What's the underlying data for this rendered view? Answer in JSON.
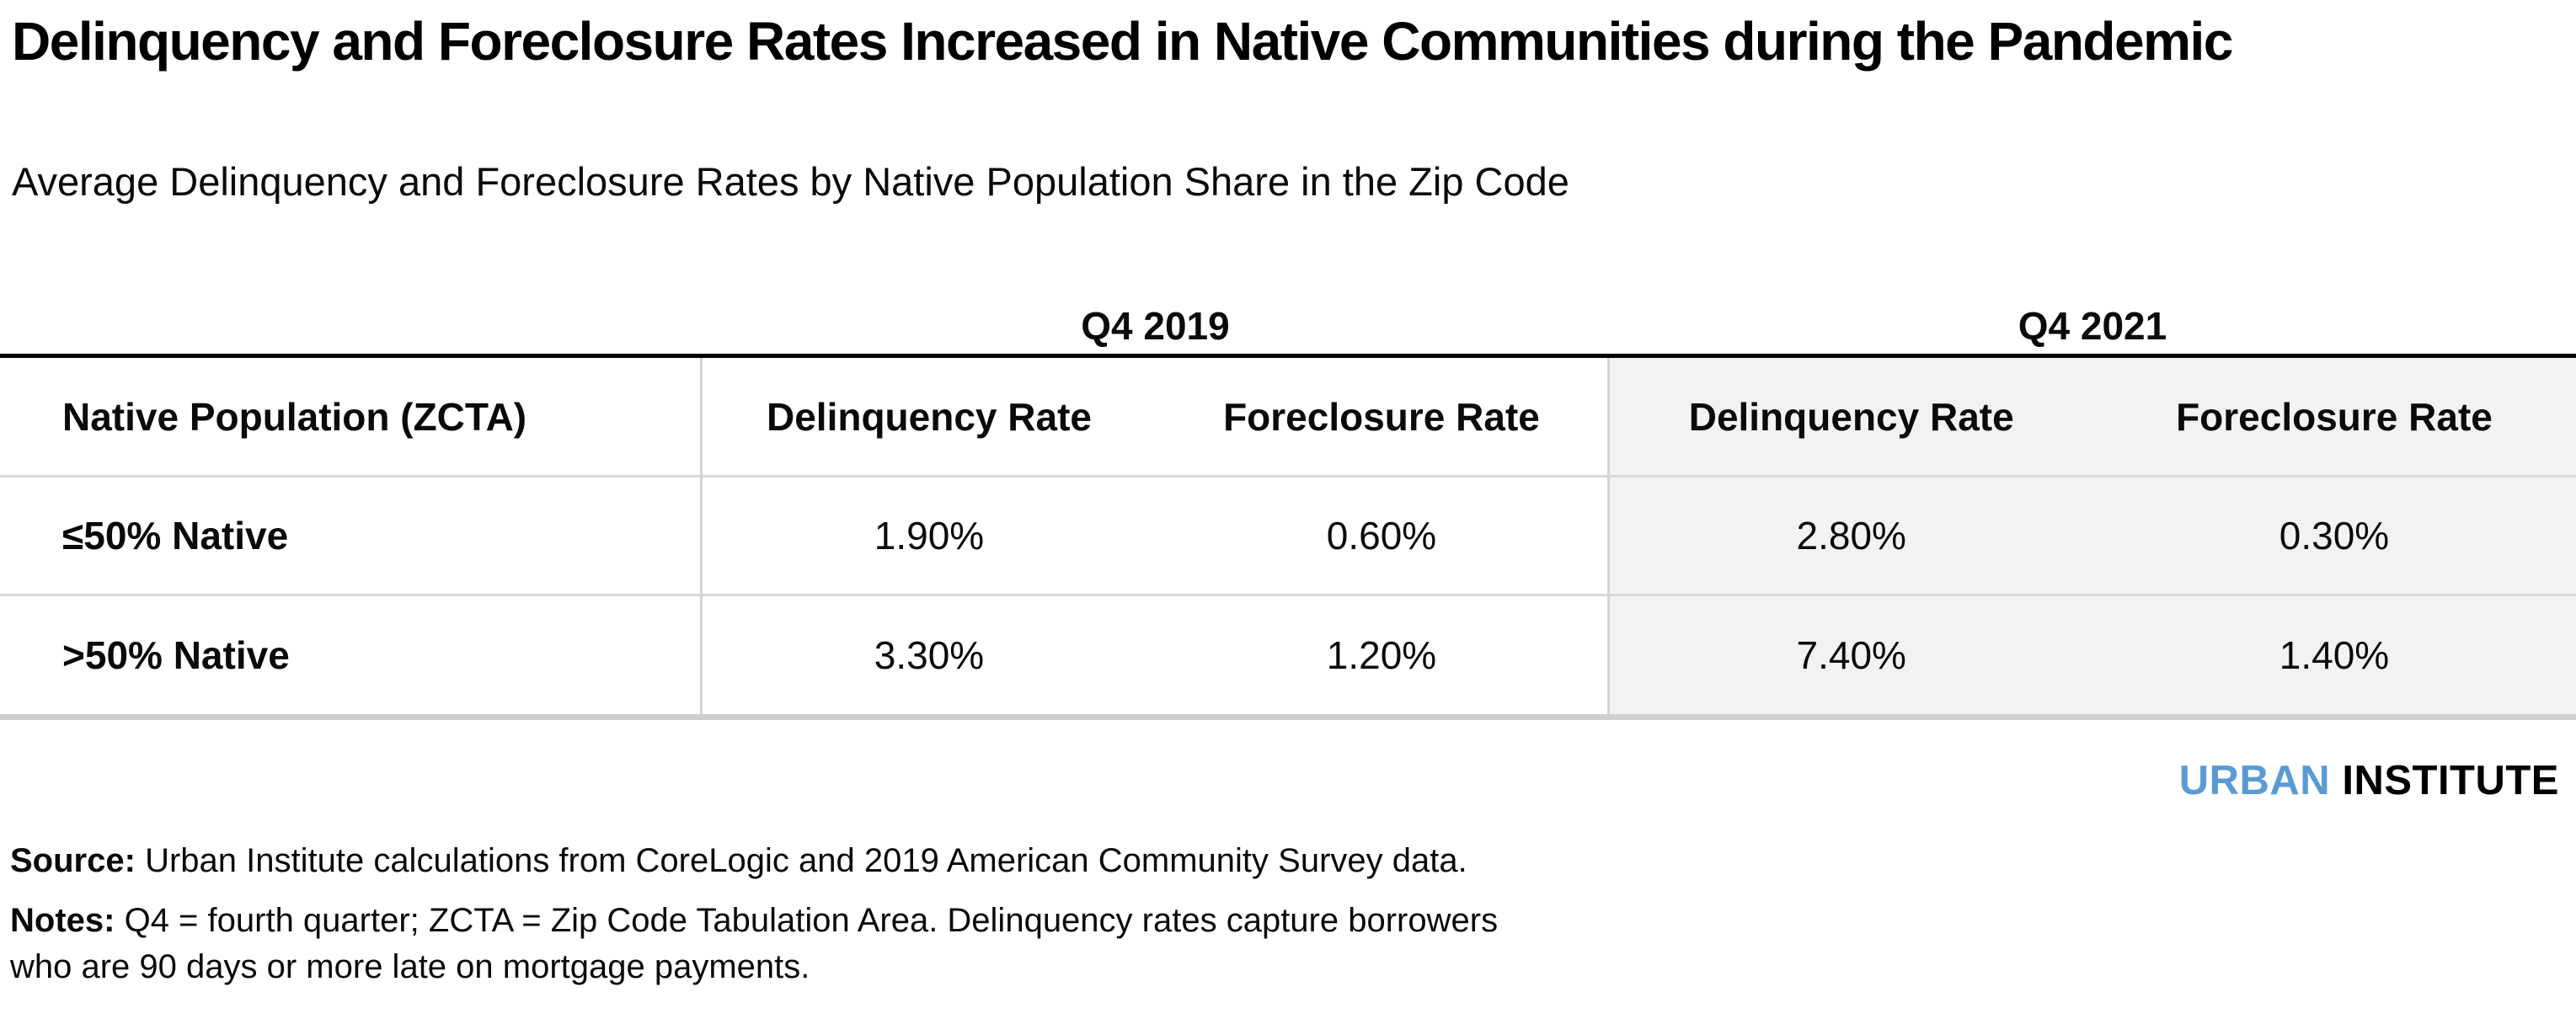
{
  "header": {
    "title": "Delinquency and Foreclosure Rates Increased in Native Communities during the Pandemic",
    "subtitle": "Average Delinquency and Foreclosure Rates by Native Population Share in the Zip Code"
  },
  "table": {
    "row_header_col": "Native Population (ZCTA)",
    "groups": [
      {
        "label": "Q4 2019"
      },
      {
        "label": "Q4 2021"
      }
    ],
    "columns": [
      "Delinquency Rate",
      "Foreclosure Rate",
      "Delinquency Rate",
      "Foreclosure Rate"
    ],
    "rows": [
      {
        "label": "≤50% Native",
        "values": [
          "1.90%",
          "0.60%",
          "2.80%",
          "0.30%"
        ]
      },
      {
        "label": ">50% Native",
        "values": [
          "3.30%",
          "1.20%",
          "7.40%",
          "1.40%"
        ]
      }
    ]
  },
  "logo": {
    "part1": "URBAN",
    "part2": "INSTITUTE"
  },
  "footnotes": {
    "source_label": "Source:",
    "source_text": "Urban Institute calculations from CoreLogic and 2019 American Community Survey data.",
    "notes_label": "Notes:",
    "notes_line1": "Q4 = fourth quarter; ZCTA = Zip Code Tabulation Area. Delinquency rates capture borrowers",
    "notes_line2": "who are 90 days or more late on mortgage payments."
  },
  "colors": {
    "accent_blue": "#5B9BD5",
    "group_shading": "#F2F2F2",
    "row_divider": "#D9D9D9",
    "top_border": "#000000",
    "bottom_border": "#CFCFCF"
  },
  "chart_data": {
    "type": "table",
    "title": "Delinquency and Foreclosure Rates Increased in Native Communities during the Pandemic",
    "subtitle": "Average Delinquency and Foreclosure Rates by Native Population Share in the Zip Code",
    "column_groups": [
      "Q4 2019",
      "Q4 2021"
    ],
    "columns": [
      "Native Population (ZCTA)",
      "Q4 2019 Delinquency Rate (%)",
      "Q4 2019 Foreclosure Rate (%)",
      "Q4 2021 Delinquency Rate (%)",
      "Q4 2021 Foreclosure Rate (%)"
    ],
    "rows": [
      [
        "≤50% Native",
        1.9,
        0.6,
        2.8,
        0.3
      ],
      [
        ">50% Native",
        3.3,
        1.2,
        7.4,
        1.4
      ]
    ],
    "units": "percent"
  }
}
